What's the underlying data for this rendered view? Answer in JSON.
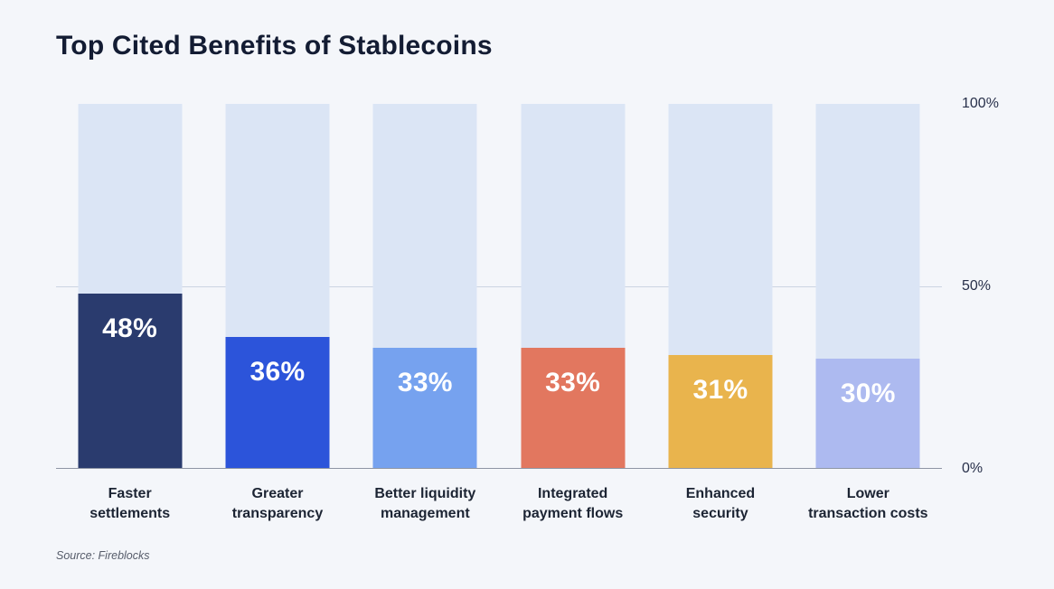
{
  "title": "Top Cited Benefits of Stablecoins",
  "source": "Source: Fireblocks",
  "axis": {
    "ticks": [
      "100%",
      "50%",
      "0%"
    ]
  },
  "chart_data": {
    "type": "bar",
    "title": "Top Cited Benefits of Stablecoins",
    "categories": [
      "Faster settlements",
      "Greater transparency",
      "Better liquidity management",
      "Integrated payment flows",
      "Enhanced security",
      "Lower transaction costs"
    ],
    "category_lines": [
      [
        "Faster",
        "settlements"
      ],
      [
        "Greater",
        "transparency"
      ],
      [
        "Better liquidity",
        "management"
      ],
      [
        "Integrated",
        "payment flows"
      ],
      [
        "Enhanced",
        "security"
      ],
      [
        "Lower",
        "transaction costs"
      ]
    ],
    "values": [
      48,
      36,
      33,
      33,
      31,
      30
    ],
    "value_labels": [
      "48%",
      "36%",
      "33%",
      "33%",
      "31%",
      "30%"
    ],
    "bar_colors": [
      "#2a3b6e",
      "#2c54da",
      "#76a2ef",
      "#e2775f",
      "#e9b44d",
      "#adbaf0"
    ],
    "track_color": "#dbe5f5",
    "xlabel": "",
    "ylabel": "",
    "ylim": [
      0,
      100
    ],
    "yticks": [
      0,
      50,
      100
    ],
    "grid": "horizontal line at 50%",
    "legend": "none"
  }
}
